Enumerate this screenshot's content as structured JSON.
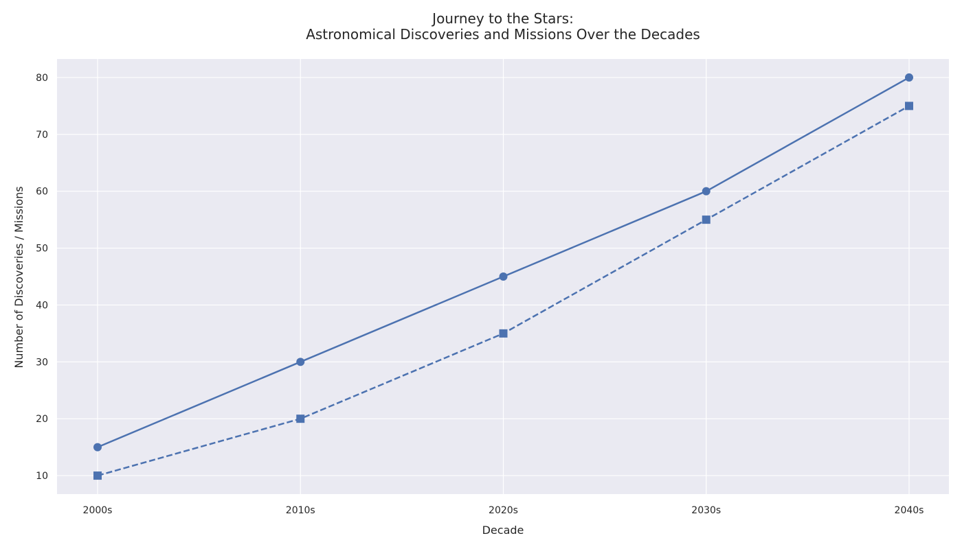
{
  "chart_data": {
    "type": "line",
    "title_line1": "Journey to the Stars:",
    "title_line2": "Astronomical Discoveries and Missions Over the Decades",
    "xlabel": "Decade",
    "ylabel": "Number of Discoveries / Missions",
    "categories": [
      "2000s",
      "2010s",
      "2020s",
      "2030s",
      "2040s"
    ],
    "ylim": [
      6.75,
      83.25
    ],
    "yticks": [
      10,
      20,
      30,
      40,
      50,
      60,
      70,
      80
    ],
    "grid": true,
    "legend": "none",
    "series": [
      {
        "values": [
          15,
          30,
          45,
          60,
          80
        ],
        "line_style": "solid",
        "marker": "circle",
        "color": "#4c72b0"
      },
      {
        "values": [
          10,
          20,
          35,
          55,
          75
        ],
        "line_style": "dashed",
        "marker": "square",
        "color": "#4c72b0"
      }
    ],
    "colors": {
      "plot_background": "#eaeaf2",
      "grid": "#ffffff",
      "text": "#262626"
    }
  }
}
